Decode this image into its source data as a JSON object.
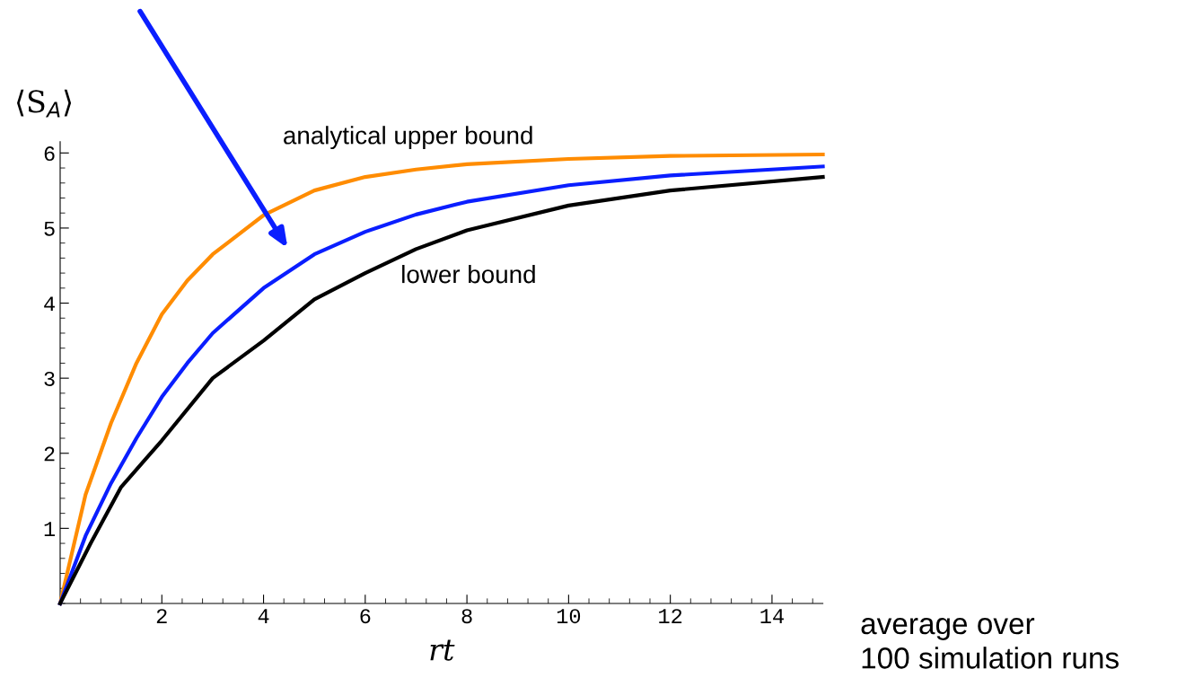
{
  "chart_data": {
    "type": "line",
    "xlabel": "rt",
    "ylabel": "⟨S$_{A}$⟩",
    "xlim": [
      0,
      15
    ],
    "ylim": [
      0,
      6.15
    ],
    "xticks": [
      2,
      4,
      6,
      8,
      10,
      12,
      14
    ],
    "yticks": [
      1,
      2,
      3,
      4,
      5,
      6
    ],
    "grid": false,
    "legend": false,
    "marker": "none",
    "line_style": "solid",
    "series": [
      {
        "color": "#ff8c00",
        "x": [
          0,
          0.5,
          1,
          1.5,
          2,
          2.5,
          3,
          4,
          5,
          6,
          7,
          8,
          10,
          12,
          15
        ],
        "values": [
          0,
          1.45,
          2.4,
          3.2,
          3.85,
          4.3,
          4.65,
          5.17,
          5.5,
          5.68,
          5.78,
          5.85,
          5.92,
          5.96,
          5.98
        ]
      },
      {
        "color": "#0a1eff",
        "x": [
          0,
          0.5,
          1,
          1.5,
          2,
          2.5,
          3,
          4,
          5,
          6,
          7,
          8,
          10,
          12,
          15
        ],
        "values": [
          0,
          0.9,
          1.6,
          2.2,
          2.75,
          3.2,
          3.6,
          4.2,
          4.65,
          4.95,
          5.18,
          5.35,
          5.57,
          5.7,
          5.82
        ]
      },
      {
        "color": "#000000",
        "x": [
          0,
          0.6,
          1.2,
          2,
          3,
          4,
          5,
          6,
          7,
          8,
          10,
          12,
          15
        ],
        "values": [
          0,
          0.8,
          1.55,
          2.17,
          3.0,
          3.5,
          4.05,
          4.4,
          4.72,
          4.97,
          5.3,
          5.5,
          5.68
        ]
      }
    ],
    "annotations": [
      "analytical upper bound",
      "lower bound",
      "average over\n100 simulation runs"
    ]
  }
}
